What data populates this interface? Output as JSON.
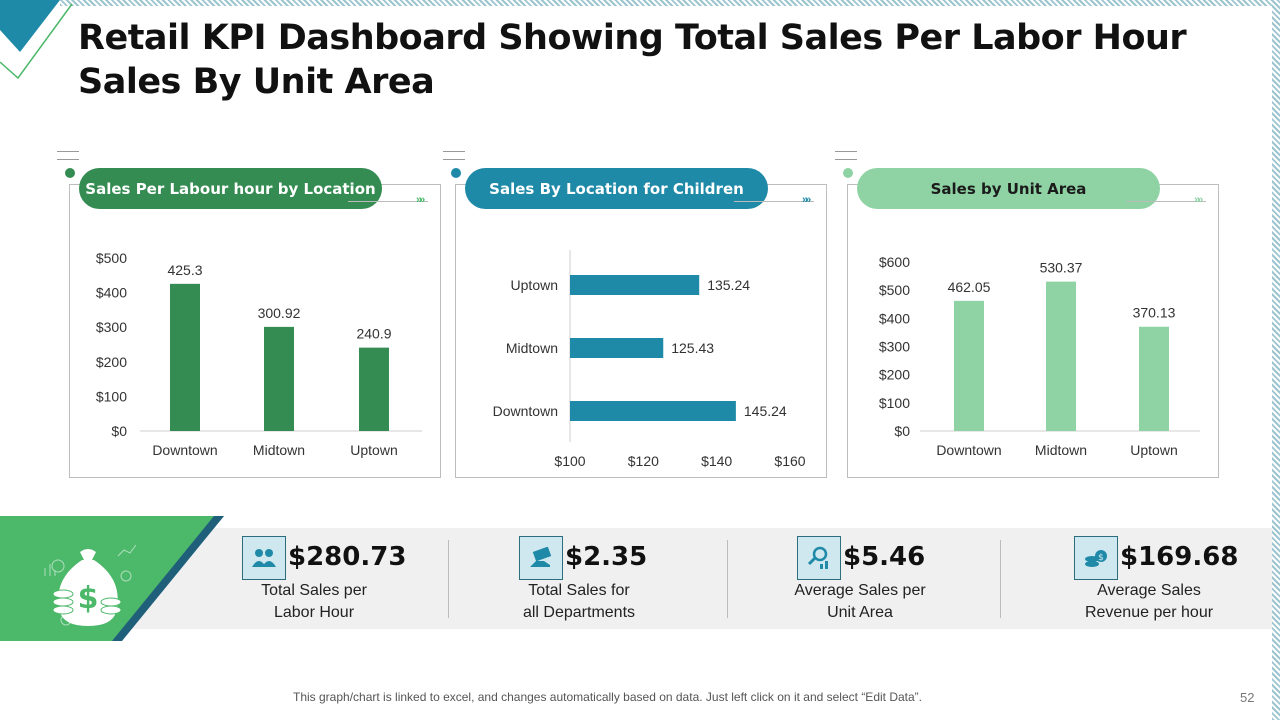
{
  "title": "Retail KPI Dashboard Showing Total Sales Per Labor Hour Sales By Unit Area",
  "colors": {
    "dark_green": "#348c52",
    "teal": "#1e8aa8",
    "light_green": "#8fd3a5",
    "band_green": "#4cb86a",
    "navy_stripe": "#1f5f7a"
  },
  "chart_data": [
    {
      "type": "bar",
      "title": "Sales Per Labour hour by Location",
      "categories": [
        "Downtown",
        "Midtown",
        "Uptown"
      ],
      "values": [
        425.3,
        300.92,
        240.9
      ],
      "value_labels": [
        "425.3",
        "300.92",
        "240.9"
      ],
      "ylim": [
        0,
        500
      ],
      "yticks": [
        "$0",
        "$100",
        "$200",
        "$300",
        "$400",
        "$500"
      ],
      "xlabel": "",
      "ylabel": ""
    },
    {
      "type": "bar",
      "orientation": "horizontal",
      "title": "Sales By Location for Children",
      "categories": [
        "Uptown",
        "Midtown",
        "Downtown"
      ],
      "values": [
        135.24,
        125.43,
        145.24
      ],
      "value_labels": [
        "135.24",
        "125.43",
        "145.24"
      ],
      "xlim": [
        100,
        160
      ],
      "xticks": [
        "$100",
        "$120",
        "$140",
        "$160"
      ],
      "xlabel": "",
      "ylabel": ""
    },
    {
      "type": "bar",
      "title": "Sales by Unit Area",
      "categories": [
        "Downtown",
        "Midtown",
        "Uptown"
      ],
      "values": [
        462.05,
        530.37,
        370.13
      ],
      "value_labels": [
        "462.05",
        "530.37",
        "370.13"
      ],
      "ylim": [
        0,
        600
      ],
      "yticks": [
        "$0",
        "$100",
        "$200",
        "$300",
        "$400",
        "$500",
        "$600"
      ],
      "xlabel": "",
      "ylabel": ""
    }
  ],
  "kpis": [
    {
      "value": "$280.73",
      "label_line1": "Total Sales per",
      "label_line2": "Labor Hour",
      "icon": "people-money-icon"
    },
    {
      "value": "$2.35",
      "label_line1": "Total Sales for",
      "label_line2": "all Departments",
      "icon": "cash-hand-icon"
    },
    {
      "value": "$5.46",
      "label_line1": "Average Sales per",
      "label_line2": "Unit Area",
      "icon": "magnifier-chart-icon"
    },
    {
      "value": "$169.68",
      "label_line1": "Average Sales",
      "label_line2": "Revenue per hour",
      "icon": "coins-icon"
    }
  ],
  "footer": "This graph/chart is linked to excel, and changes automatically based on data. Just left click on it and select “Edit Data”.",
  "page_number": "52"
}
